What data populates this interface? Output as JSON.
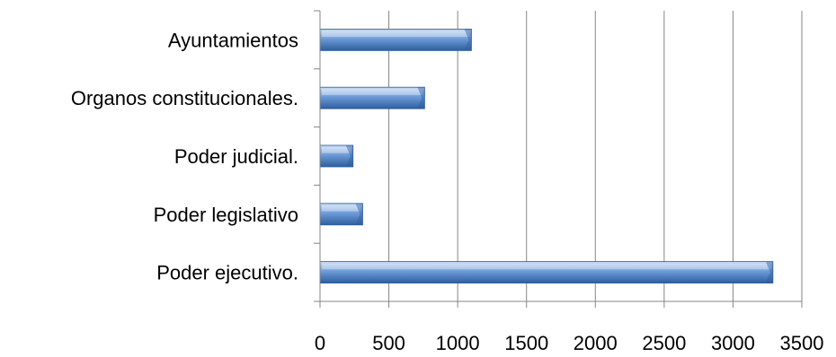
{
  "chart_data": {
    "type": "bar",
    "orientation": "horizontal",
    "categories": [
      "Ayuntamientos",
      "Organos constitucionales.",
      "Poder judicial.",
      "Poder legislativo",
      "Poder ejecutivo."
    ],
    "values": [
      1100,
      760,
      240,
      310,
      3290
    ],
    "xlim": [
      0,
      3500
    ],
    "xticks": [
      "0",
      "500",
      "1000",
      "1500",
      "2000",
      "2500",
      "3000",
      "3500"
    ],
    "grid": true,
    "legend": "none",
    "colors": {
      "bar_light": "#c5d9f1",
      "bar_main": "#6d9bd8",
      "bar_dark": "#2f5e9e",
      "gridline": "#868686",
      "axis": "#868686"
    }
  }
}
